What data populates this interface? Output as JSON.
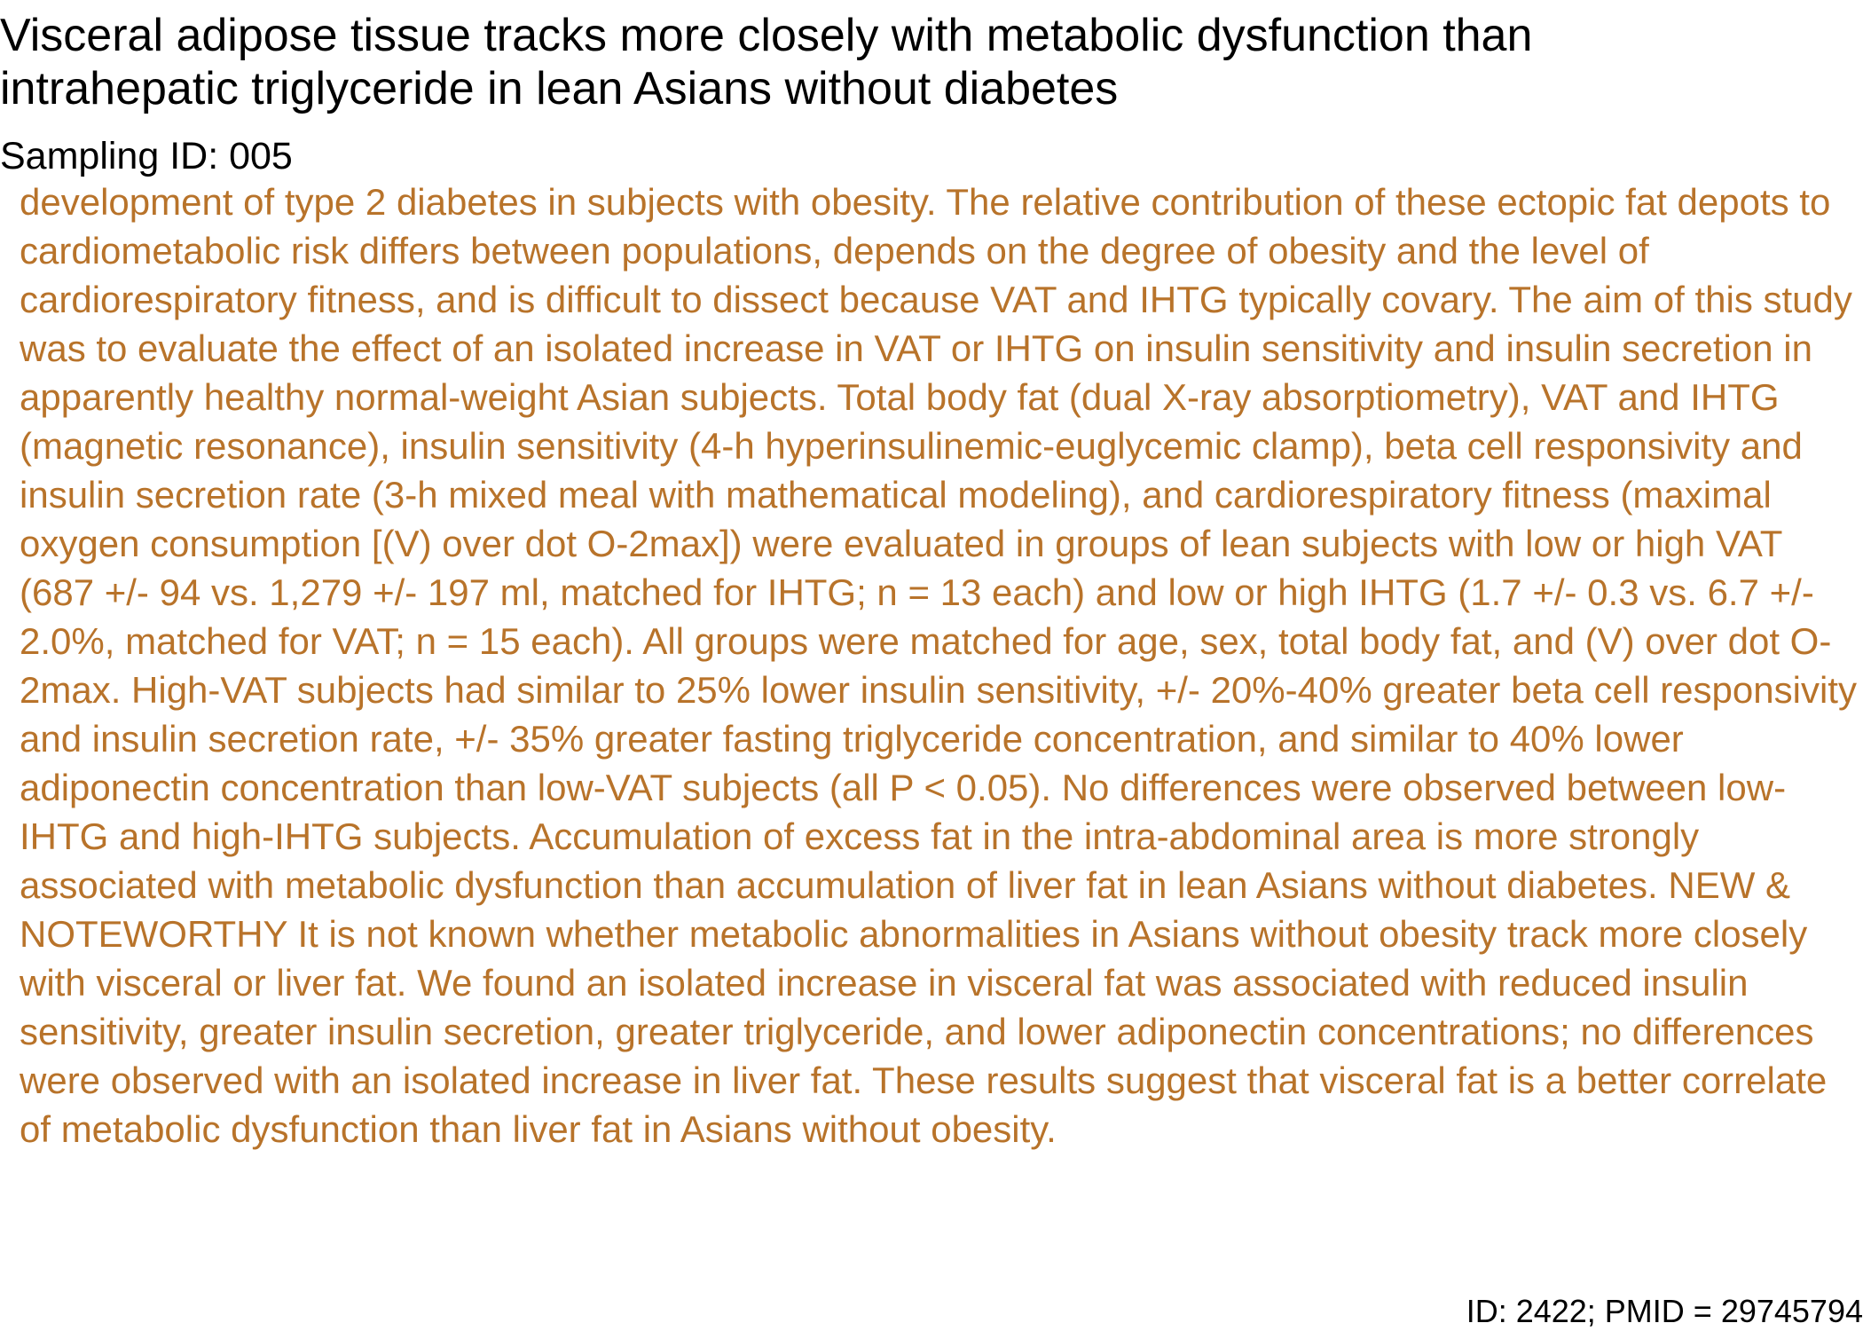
{
  "document": {
    "title": "Visceral adipose tissue tracks more closely with metabolic dysfunction than intrahepatic triglyceride in lean Asians without diabetes",
    "sampling_id": "Sampling ID: 005",
    "abstract": "Increased visceral adipose tissue (VAT) and intrahepatic triglyceride (IHTG) are important risk factors for the development of type 2 diabetes in subjects with obesity. The relative contribution of these ectopic fat depots to cardiometabolic risk differs between populations, depends on the degree of obesity and the level of cardiorespiratory fitness, and is difficult to dissect because VAT and IHTG typically covary. The aim of this study was to evaluate the effect of an isolated increase in VAT or IHTG on insulin sensitivity and insulin secretion in apparently healthy normal-weight Asian subjects. Total body fat (dual X-ray absorptiometry), VAT and IHTG (magnetic resonance), insulin sensitivity (4-h hyperinsulinemic-euglycemic clamp), beta cell responsivity and insulin secretion rate (3-h mixed meal with mathematical modeling), and cardiorespiratory fitness (maximal oxygen consumption [(V) over dot O-2max]) were evaluated in groups of lean subjects with low or high VAT (687 +/- 94 vs. 1,279 +/- 197 ml, matched for IHTG; n = 13 each) and low or high IHTG (1.7 +/- 0.3 vs. 6.7 +/- 2.0%, matched for VAT; n = 15 each). All groups were matched for age, sex, total body fat, and (V) over dot O-2max. High-VAT subjects had similar to 25% lower insulin sensitivity, +/- 20%-40% greater beta cell responsivity and insulin secretion rate, +/- 35% greater fasting triglyceride concentration, and similar to 40% lower adiponectin concentration than low-VAT subjects (all P < 0.05). No differences were observed between low-IHTG and high-IHTG subjects. Accumulation of excess fat in the intra-abdominal area is more strongly associated with metabolic dysfunction than accumulation of liver fat in lean Asians without diabetes. NEW & NOTEWORTHY It is not known whether metabolic abnormalities in Asians without obesity track more closely with visceral or liver fat. We found an isolated increase in visceral fat was associated with reduced insulin sensitivity, greater insulin secretion, greater triglyceride, and lower adiponectin concentrations; no differences were observed with an isolated increase in liver fat. These results suggest that visceral fat is a better correlate of metabolic dysfunction than liver fat in Asians without obesity.",
    "footer_id": "ID: 2422; PMID = 29745794"
  },
  "colors": {
    "abstract_text": "#b8732a",
    "heading_text": "#000000",
    "background": "#ffffff"
  }
}
